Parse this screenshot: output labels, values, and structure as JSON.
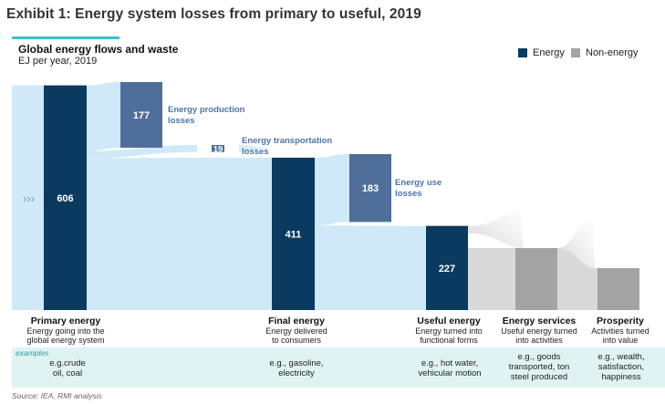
{
  "header": {
    "exhibit_title": "Exhibit 1: Energy system losses from primary to useful, 2019",
    "subtitle": "Global energy flows and waste",
    "units": "EJ per year, 2019"
  },
  "legend": {
    "energy": "Energy",
    "non_energy": "Non-energy",
    "colors": {
      "energy": "#0b3a60",
      "non_energy": "#a3a3a3"
    }
  },
  "chart_data": {
    "type": "sankey",
    "title": "Global energy flows and waste",
    "units": "EJ per year, 2019",
    "nodes": [
      {
        "id": "primary",
        "value": 606,
        "label": "606"
      },
      {
        "id": "production_losses",
        "value": 177,
        "label": "177",
        "annotation": "Energy production losses"
      },
      {
        "id": "transport_losses",
        "value": 19,
        "label": "19",
        "annotation": "Energy transportation losses"
      },
      {
        "id": "final",
        "value": 411,
        "label": "411"
      },
      {
        "id": "use_losses",
        "value": 183,
        "label": "183",
        "annotation": "Energy use losses"
      },
      {
        "id": "useful",
        "value": 227,
        "label": "227"
      }
    ],
    "flows": [
      {
        "from": "primary",
        "to": "production_losses",
        "value": 177
      },
      {
        "from": "primary",
        "to": "transport_losses",
        "value": 19
      },
      {
        "from": "primary",
        "to": "final",
        "value": 411
      },
      {
        "from": "final",
        "to": "use_losses",
        "value": 183
      },
      {
        "from": "final",
        "to": "useful",
        "value": 227
      }
    ],
    "annotations": {
      "production": "Energy production losses",
      "transport": "Energy transportation losses",
      "use": "Energy use losses"
    }
  },
  "stages": {
    "primary": {
      "title": "Primary energy",
      "desc": "Energy going into the global energy system",
      "example": "e.g.crude oil, coal"
    },
    "final": {
      "title": "Final energy",
      "desc": "Energy delivered to consumers",
      "example": "e.g., gasoline, electricity"
    },
    "useful": {
      "title": "Useful energy",
      "desc": "Energy turned into functional forms",
      "example": "e.g., hot water, vehicular motion"
    },
    "services": {
      "title": "Energy services",
      "desc": "Useful energy turned into activities",
      "example": "e.g., goods transported, ton steel produced"
    },
    "prosperity": {
      "title": "Prosperity",
      "desc": "Activities turned into value",
      "example": "e.g., wealth, satisfaction, happiness"
    }
  },
  "examples_label": "examples",
  "source": "Source: IEA, RMI analysis"
}
